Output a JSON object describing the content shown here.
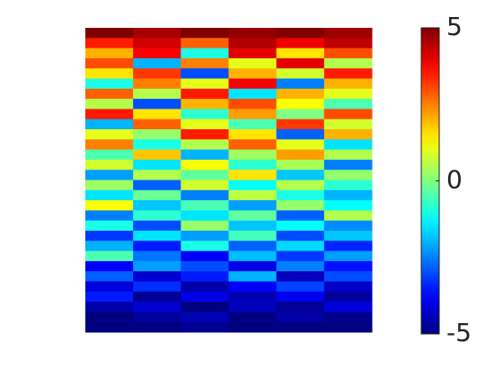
{
  "chart_data": {
    "type": "heatmap",
    "colormap": "jet",
    "clim": [
      -5,
      5
    ],
    "cticks": [
      -5,
      0,
      5
    ],
    "z": [
      [
        5,
        4.6,
        5,
        4.8,
        5,
        4.7
      ],
      [
        3.5,
        4.2,
        2.8,
        4.5,
        3.9,
        4.4
      ],
      [
        2,
        3.8,
        -1,
        4,
        1.5,
        3
      ],
      [
        3,
        -2,
        2.5,
        1,
        4,
        0.5
      ],
      [
        1.5,
        3.2,
        -3,
        2,
        0.8,
        3.5
      ],
      [
        -1,
        2.5,
        1,
        3.8,
        -2.5,
        2
      ],
      [
        2.8,
        0.5,
        3.5,
        -1.5,
        2,
        1
      ],
      [
        0.5,
        -3,
        2,
        3,
        1.2,
        -0.5
      ],
      [
        3.5,
        1.5,
        -0.8,
        2.2,
        0,
        3
      ],
      [
        -2,
        2.8,
        1,
        -0.5,
        3.2,
        0.8
      ],
      [
        1,
        0.2,
        3.5,
        1.5,
        -2.8,
        2
      ],
      [
        2.5,
        -1,
        0.5,
        2.8,
        1,
        -1.5
      ],
      [
        -0.5,
        1.8,
        -2,
        0.3,
        2.2,
        0.5
      ],
      [
        0.8,
        -1.5,
        1.2,
        -0.8,
        0.4,
        -2.5
      ],
      [
        -2.2,
        0.5,
        -0.3,
        1.5,
        -1.8,
        0.2
      ],
      [
        0.3,
        -2.8,
        0.8,
        -1.2,
        0.5,
        -0.8
      ],
      [
        -1.5,
        -0.2,
        -2.5,
        0.6,
        -1,
        -2
      ],
      [
        1.2,
        -1.8,
        -0.5,
        -2.2,
        0.2,
        -1.2
      ],
      [
        -2.5,
        -0.8,
        -1.5,
        -0.3,
        -2.8,
        0.5
      ],
      [
        -1,
        -3,
        0.2,
        -1.8,
        -1.2,
        -2.4
      ],
      [
        -3.2,
        -1.5,
        -2.2,
        -0.6,
        -3,
        -1.8
      ],
      [
        -2,
        -3.5,
        -1,
        -2.8,
        -1.6,
        -3.4
      ],
      [
        -0.5,
        -2.6,
        -3.8,
        -1.9,
        -3.2,
        -2.2
      ],
      [
        -3.8,
        -2.2,
        -3,
        -4,
        -2.5,
        -3.6
      ],
      [
        -2.8,
        -4.2,
        -3.5,
        -2,
        -4.4,
        -3
      ],
      [
        -4.1,
        -3.3,
        -4.6,
        -3.8,
        -3.1,
        -4.3
      ],
      [
        -3.5,
        -4.8,
        -4,
        -4.5,
        -3.9,
        -4.7
      ],
      [
        -4.6,
        -4.2,
        -5,
        -4.4,
        -4.8,
        -4.1
      ],
      [
        -5,
        -4.7,
        -4.5,
        -5,
        -4.6,
        -4.9
      ],
      [
        -5,
        -5,
        -4.8,
        -5,
        -5,
        -5
      ]
    ]
  }
}
